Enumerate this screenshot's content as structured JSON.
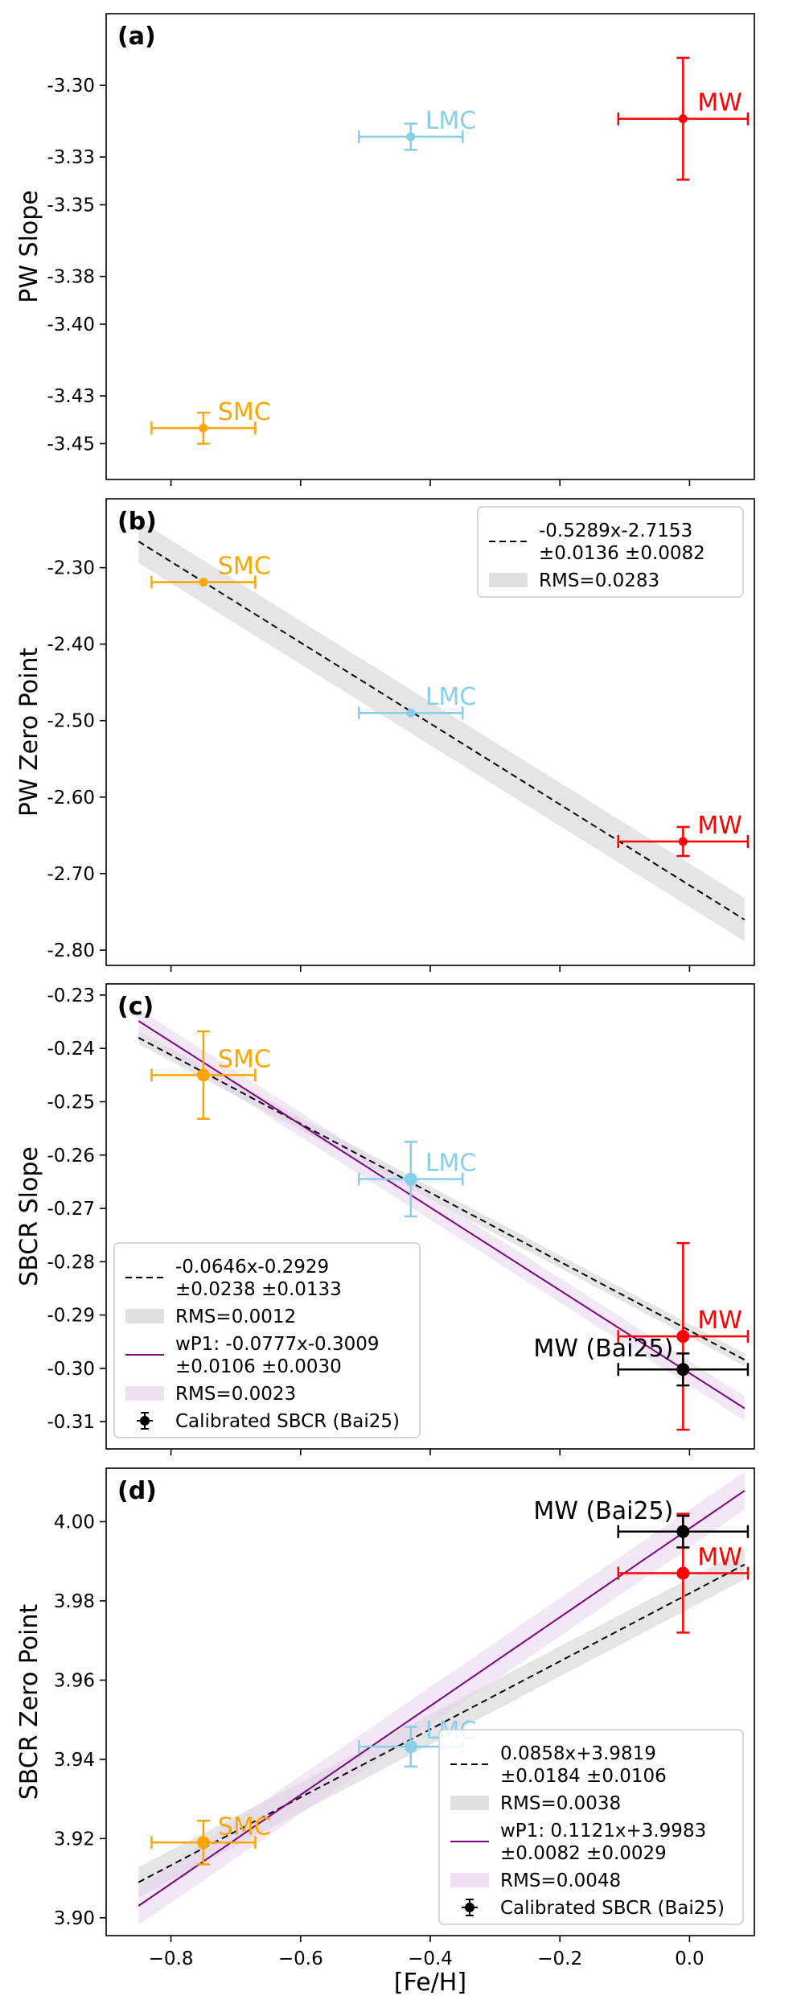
{
  "colors": {
    "smc": "#ffa500",
    "lmc": "#87ceeb",
    "mw": "#ff0000",
    "bai25": "#000000",
    "fit_line": "#000000",
    "fit_band": "#d3d3d3",
    "wp1_line": "#800080",
    "wp1_band": "#e8d5ec"
  },
  "chart_data": [
    {
      "type": "scatter",
      "panel": "(a)",
      "ylabel": "PW Slope",
      "xlim": [
        -0.9,
        0.1
      ],
      "ylim": [
        -3.465,
        -3.27
      ],
      "yticks": [
        -3.3,
        -3.33,
        -3.35,
        -3.38,
        -3.4,
        -3.43,
        -3.45
      ],
      "ytick_labels": [
        "-3.30",
        "-3.33",
        "-3.35",
        "-3.38",
        "-3.40",
        "-3.43",
        "-3.45"
      ],
      "points": [
        {
          "name": "SMC",
          "label": "SMC",
          "color": "smc",
          "x": -0.75,
          "y": -3.4435,
          "xerr": 0.08,
          "yerr": 0.0065,
          "label_pos": "right"
        },
        {
          "name": "LMC",
          "label": "LMC",
          "color": "lmc",
          "x": -0.43,
          "y": -3.3215,
          "xerr": 0.08,
          "yerr": 0.0055,
          "label_pos": "right"
        },
        {
          "name": "MW",
          "label": "MW",
          "color": "mw",
          "x": -0.01,
          "y": -3.314,
          "xerr": 0.1,
          "yerr": 0.0255,
          "label_pos": "right"
        }
      ],
      "fits": [],
      "legend": null
    },
    {
      "type": "scatter",
      "panel": "(b)",
      "ylabel": "PW Zero Point",
      "xlim": [
        -0.9,
        0.1
      ],
      "ylim": [
        -2.82,
        -2.21
      ],
      "yticks": [
        -2.3,
        -2.4,
        -2.5,
        -2.6,
        -2.7,
        -2.8
      ],
      "ytick_labels": [
        "-2.30",
        "-2.40",
        "-2.50",
        "-2.60",
        "-2.70",
        "-2.80"
      ],
      "points": [
        {
          "name": "SMC",
          "label": "SMC",
          "color": "smc",
          "x": -0.75,
          "y": -2.319,
          "xerr": 0.08,
          "yerr": 0,
          "label_pos": "right"
        },
        {
          "name": "LMC",
          "label": "LMC",
          "color": "lmc",
          "x": -0.43,
          "y": -2.49,
          "xerr": 0.08,
          "yerr": 0,
          "label_pos": "right"
        },
        {
          "name": "MW",
          "label": "MW",
          "color": "mw",
          "x": -0.01,
          "y": -2.658,
          "xerr": 0.1,
          "yerr": 0.019,
          "label_pos": "right"
        }
      ],
      "fits": [
        {
          "slope": -0.5289,
          "intercept": -2.7153,
          "band": 0.0283,
          "line_color": "fit_line",
          "band_color": "fit_band",
          "dashed": true
        }
      ],
      "legend": {
        "position": "upper right",
        "entries": [
          {
            "kind": "dashed",
            "color": "fit_line",
            "line1": "-0.5289x-2.7153",
            "line2": "±0.0136    ±0.0082"
          },
          {
            "kind": "band",
            "color": "fit_band",
            "line1": "RMS=0.0283"
          }
        ]
      }
    },
    {
      "type": "scatter",
      "panel": "(c)",
      "ylabel": "SBCR Slope",
      "xlim": [
        -0.9,
        0.1
      ],
      "ylim": [
        -0.3151,
        -0.2279
      ],
      "yticks": [
        -0.23,
        -0.24,
        -0.25,
        -0.26,
        -0.27,
        -0.28,
        -0.29,
        -0.3,
        -0.31
      ],
      "ytick_labels": [
        "-0.23",
        "-0.24",
        "-0.25",
        "-0.26",
        "-0.27",
        "-0.28",
        "-0.29",
        "-0.30",
        "-0.31"
      ],
      "points": [
        {
          "name": "SMC",
          "label": "SMC",
          "color": "smc",
          "x": -0.75,
          "y": -0.245,
          "xerr": 0.08,
          "yerr": 0.0082,
          "label_pos": "right"
        },
        {
          "name": "LMC",
          "label": "LMC",
          "color": "lmc",
          "x": -0.43,
          "y": -0.2645,
          "xerr": 0.08,
          "yerr": 0.007,
          "label_pos": "right"
        },
        {
          "name": "MW",
          "label": "MW",
          "color": "mw",
          "x": -0.01,
          "y": -0.294,
          "xerr": 0.1,
          "yerr": 0.0175,
          "label_pos": "right"
        },
        {
          "name": "MW (Bai25)",
          "label": "MW (Bai25)",
          "color": "bai25",
          "x": -0.01,
          "y": -0.3002,
          "xerr": 0.1,
          "yerr": 0.003,
          "label_pos": "left"
        }
      ],
      "fits": [
        {
          "slope": -0.0646,
          "intercept": -0.2929,
          "band": 0.0012,
          "line_color": "fit_line",
          "band_color": "fit_band",
          "dashed": true
        },
        {
          "slope": -0.0777,
          "intercept": -0.3009,
          "band": 0.0023,
          "line_color": "wp1_line",
          "band_color": "wp1_band",
          "dashed": false
        }
      ],
      "legend": {
        "position": "lower left",
        "entries": [
          {
            "kind": "dashed",
            "color": "fit_line",
            "line1": "-0.0646x-0.2929",
            "line2": "±0.0238    ±0.0133"
          },
          {
            "kind": "band",
            "color": "fit_band",
            "line1": "RMS=0.0012"
          },
          {
            "kind": "solid",
            "color": "wp1_line",
            "line1": "wP1: -0.0777x-0.3009",
            "line2": "±0.0106    ±0.0030"
          },
          {
            "kind": "band",
            "color": "wp1_band",
            "line1": "RMS=0.0023"
          },
          {
            "kind": "marker",
            "color": "bai25",
            "line1": "Calibrated SBCR (Bai25)"
          }
        ]
      }
    },
    {
      "type": "scatter",
      "panel": "(d)",
      "ylabel": "SBCR Zero Point",
      "xlabel": "[Fe/H]",
      "xlim": [
        -0.9,
        0.1
      ],
      "ylim": [
        3.8955,
        4.0135
      ],
      "xticks": [
        -0.8,
        -0.6,
        -0.4,
        -0.2,
        0.0
      ],
      "xtick_labels": [
        "−0.8",
        "−0.6",
        "−0.4",
        "−0.2",
        "0.0"
      ],
      "yticks": [
        3.9,
        3.92,
        3.94,
        3.96,
        3.98,
        4.0
      ],
      "ytick_labels": [
        "3.90",
        "3.92",
        "3.94",
        "3.96",
        "3.98",
        "4.00"
      ],
      "points": [
        {
          "name": "SMC",
          "label": "SMC",
          "color": "smc",
          "x": -0.75,
          "y": 3.919,
          "xerr": 0.08,
          "yerr": 0.0055,
          "label_pos": "right"
        },
        {
          "name": "LMC",
          "label": "LMC",
          "color": "lmc",
          "x": -0.43,
          "y": 3.9432,
          "xerr": 0.08,
          "yerr": 0.005,
          "label_pos": "right"
        },
        {
          "name": "MW",
          "label": "MW",
          "color": "mw",
          "x": -0.01,
          "y": 3.987,
          "xerr": 0.1,
          "yerr": 0.015,
          "label_pos": "right"
        },
        {
          "name": "MW (Bai25)",
          "label": "MW (Bai25)",
          "color": "bai25",
          "x": -0.01,
          "y": 3.9975,
          "xerr": 0.1,
          "yerr": 0.004,
          "label_pos": "left"
        }
      ],
      "fits": [
        {
          "slope": 0.0858,
          "intercept": 3.9819,
          "band": 0.0038,
          "line_color": "fit_line",
          "band_color": "fit_band",
          "dashed": true
        },
        {
          "slope": 0.1121,
          "intercept": 3.9983,
          "band": 0.0048,
          "line_color": "wp1_line",
          "band_color": "wp1_band",
          "dashed": false
        }
      ],
      "legend": {
        "position": "lower right",
        "entries": [
          {
            "kind": "dashed",
            "color": "fit_line",
            "line1": "0.0858x+3.9819",
            "line2": "±0.0184    ±0.0106"
          },
          {
            "kind": "band",
            "color": "fit_band",
            "line1": "RMS=0.0038"
          },
          {
            "kind": "solid",
            "color": "wp1_line",
            "line1": "wP1: 0.1121x+3.9983",
            "line2": "±0.0082    ±0.0029"
          },
          {
            "kind": "band",
            "color": "wp1_band",
            "line1": "RMS=0.0048"
          },
          {
            "kind": "marker",
            "color": "bai25",
            "line1": "Calibrated SBCR (Bai25)"
          }
        ]
      }
    }
  ]
}
